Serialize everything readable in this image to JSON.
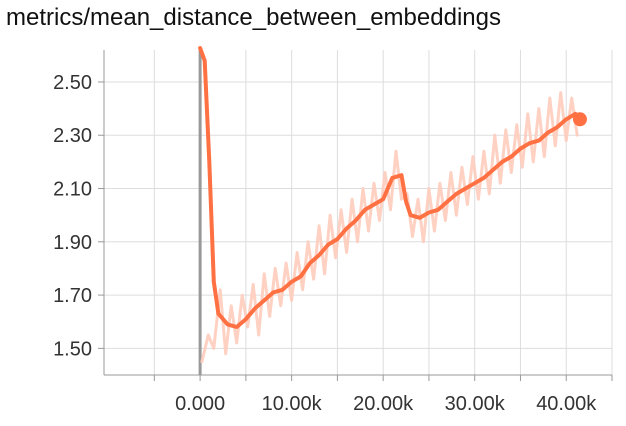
{
  "chart_data": {
    "type": "line",
    "title": "metrics/mean_distance_between_embeddings",
    "xlabel": "",
    "ylabel": "",
    "xlim": [
      -10500,
      45000
    ],
    "ylim": [
      1.4,
      2.62
    ],
    "x_ticks": [
      0,
      10000,
      20000,
      30000,
      40000
    ],
    "x_tick_labels": [
      "0.000",
      "10.00k",
      "20.00k",
      "30.00k",
      "40.00k"
    ],
    "y_ticks": [
      1.5,
      1.7,
      1.9,
      2.1,
      2.3,
      2.5
    ],
    "y_tick_labels": [
      "1.50",
      "1.70",
      "1.90",
      "2.10",
      "2.30",
      "2.50"
    ],
    "grid": true,
    "colors": {
      "smoothed": "#ff7043",
      "raw": "#ffccbc",
      "grid": "#dddddd",
      "axis_line": "#999999"
    },
    "series": [
      {
        "style": "smoothed",
        "x": [
          0,
          500,
          1000,
          1500,
          2000,
          3000,
          4000,
          5000,
          6000,
          7000,
          8000,
          9000,
          10000,
          11000,
          12000,
          13000,
          14000,
          15000,
          16000,
          17000,
          18000,
          19000,
          20000,
          21000,
          22000,
          22500,
          23000,
          24000,
          25000,
          26000,
          27000,
          28000,
          29000,
          30000,
          31000,
          32000,
          33000,
          34000,
          35000,
          36000,
          37000,
          38000,
          39000,
          40000,
          41000
        ],
        "y": [
          2.75,
          2.58,
          2.2,
          1.75,
          1.63,
          1.59,
          1.58,
          1.61,
          1.65,
          1.68,
          1.71,
          1.72,
          1.75,
          1.77,
          1.82,
          1.85,
          1.89,
          1.91,
          1.95,
          1.98,
          2.02,
          2.04,
          2.06,
          2.14,
          2.15,
          2.05,
          2.0,
          1.99,
          2.01,
          2.02,
          2.05,
          2.08,
          2.1,
          2.12,
          2.14,
          2.17,
          2.2,
          2.22,
          2.25,
          2.27,
          2.28,
          2.31,
          2.33,
          2.36,
          2.38
        ]
      },
      {
        "style": "raw",
        "x": [
          200,
          900,
          1500,
          2200,
          2800,
          3400,
          4000,
          4600,
          5200,
          5800,
          6400,
          7000,
          7600,
          8200,
          8800,
          9400,
          10000,
          10600,
          11200,
          11800,
          12400,
          13000,
          13600,
          14200,
          14800,
          15400,
          16000,
          16600,
          17200,
          17800,
          18400,
          19000,
          19600,
          20200,
          20800,
          21400,
          22000,
          22600,
          23200,
          23800,
          24400,
          25000,
          25600,
          26200,
          26800,
          27400,
          28000,
          28600,
          29200,
          29800,
          30400,
          31000,
          31600,
          32200,
          32800,
          33400,
          34000,
          34600,
          35200,
          35800,
          36400,
          37000,
          37600,
          38200,
          38800,
          39400,
          40000,
          40600,
          41200
        ],
        "y": [
          1.45,
          1.55,
          1.5,
          1.72,
          1.48,
          1.66,
          1.52,
          1.7,
          1.58,
          1.74,
          1.55,
          1.78,
          1.62,
          1.8,
          1.66,
          1.82,
          1.68,
          1.86,
          1.72,
          1.9,
          1.76,
          1.96,
          1.78,
          2.0,
          1.84,
          2.02,
          1.86,
          2.06,
          1.9,
          2.1,
          1.94,
          2.12,
          1.98,
          2.16,
          2.02,
          2.24,
          2.06,
          2.08,
          1.92,
          2.06,
          1.9,
          2.1,
          1.94,
          2.12,
          1.98,
          2.16,
          2.0,
          2.18,
          2.04,
          2.22,
          2.06,
          2.24,
          2.08,
          2.3,
          2.12,
          2.32,
          2.16,
          2.34,
          2.18,
          2.38,
          2.2,
          2.4,
          2.22,
          2.44,
          2.26,
          2.46,
          2.28,
          2.44,
          2.3
        ]
      }
    ],
    "last_point": {
      "x": 41500,
      "y": 2.36
    }
  }
}
